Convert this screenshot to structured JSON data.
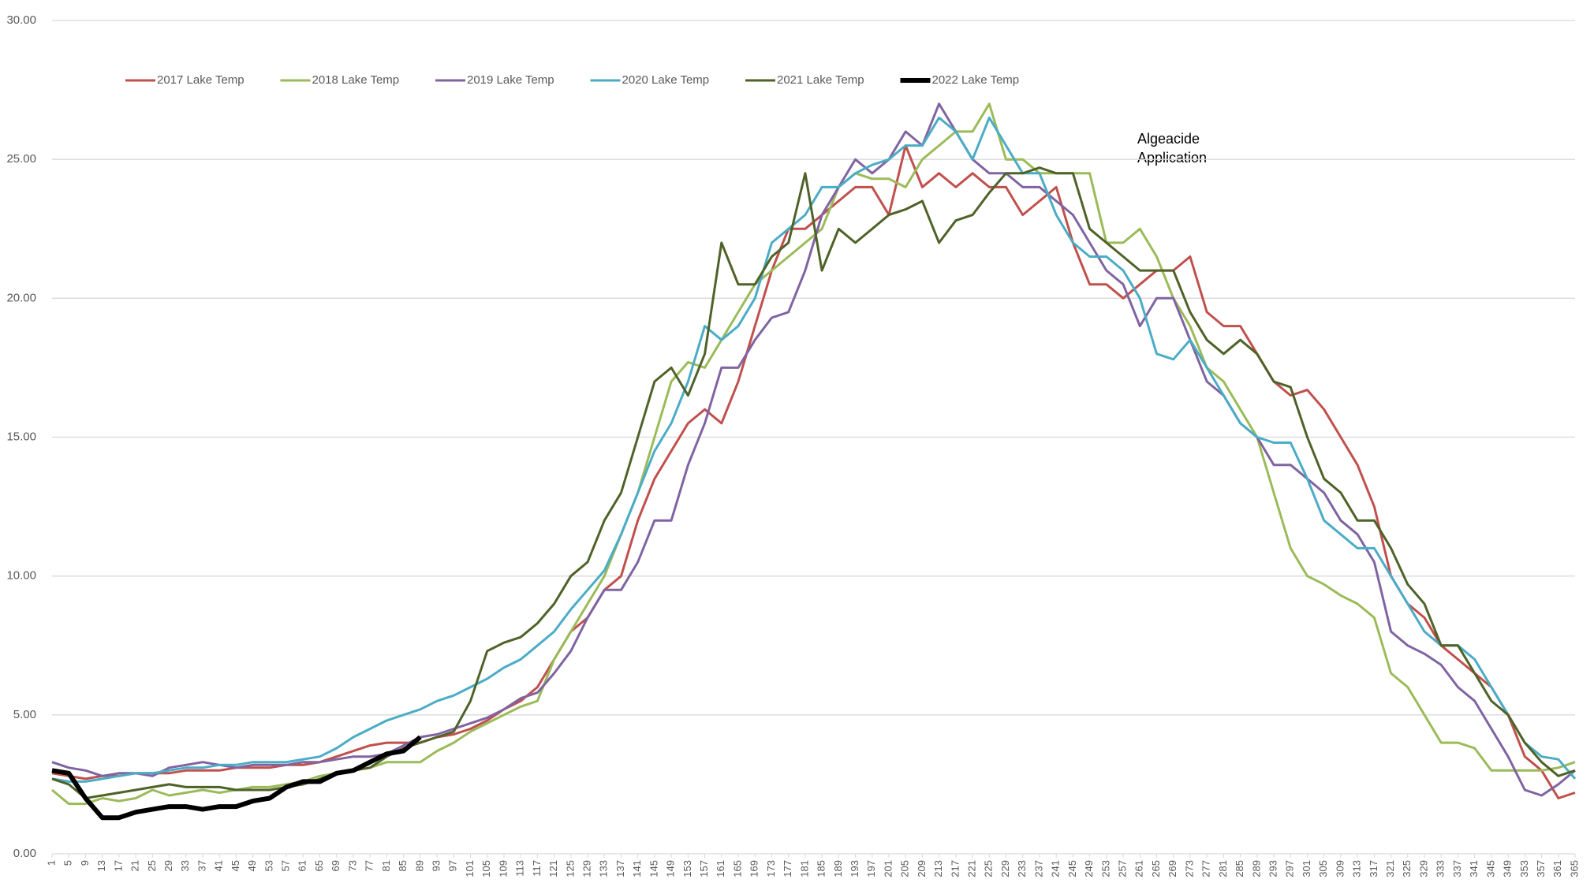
{
  "chart_data": {
    "type": "line",
    "annotation": "Algeacide Application",
    "xlim": [
      1,
      365
    ],
    "x": [
      1,
      5,
      9,
      13,
      17,
      21,
      25,
      29,
      33,
      37,
      41,
      45,
      49,
      53,
      57,
      61,
      65,
      69,
      73,
      77,
      81,
      85,
      89,
      93,
      97,
      101,
      105,
      109,
      113,
      117,
      121,
      125,
      129,
      133,
      137,
      141,
      145,
      149,
      153,
      157,
      161,
      165,
      169,
      173,
      177,
      181,
      185,
      189,
      193,
      197,
      201,
      205,
      209,
      213,
      217,
      221,
      225,
      229,
      233,
      237,
      241,
      245,
      249,
      253,
      257,
      261,
      265,
      269,
      273,
      277,
      281,
      285,
      289,
      293,
      297,
      301,
      305,
      309,
      313,
      317,
      321,
      325,
      329,
      333,
      337,
      341,
      345,
      349,
      353,
      357,
      361,
      365
    ],
    "xticks": [
      1,
      5,
      9,
      13,
      17,
      21,
      25,
      29,
      33,
      37,
      41,
      45,
      49,
      53,
      57,
      61,
      65,
      69,
      73,
      77,
      81,
      85,
      89,
      93,
      97,
      101,
      105,
      109,
      113,
      117,
      121,
      125,
      129,
      133,
      137,
      141,
      145,
      149,
      153,
      157,
      161,
      165,
      169,
      173,
      177,
      181,
      185,
      189,
      193,
      197,
      201,
      205,
      209,
      213,
      217,
      221,
      225,
      229,
      233,
      237,
      241,
      245,
      249,
      253,
      257,
      261,
      265,
      269,
      273,
      277,
      281,
      285,
      289,
      293,
      297,
      301,
      305,
      309,
      313,
      317,
      321,
      325,
      329,
      333,
      337,
      341,
      345,
      349,
      353,
      357,
      361,
      365
    ],
    "ylim": [
      0,
      30
    ],
    "yticks": [
      {
        "value": 0,
        "label": "0.00"
      },
      {
        "value": 5,
        "label": "5.00"
      },
      {
        "value": 10,
        "label": "10.00"
      },
      {
        "value": 15,
        "label": "15.00"
      },
      {
        "value": 20,
        "label": "20.00"
      },
      {
        "value": 25,
        "label": "25.00"
      },
      {
        "value": 30,
        "label": "30.00"
      }
    ],
    "grid": true,
    "legend": "top",
    "series": [
      {
        "name": "2017 Lake Temp",
        "color": "#c0504d",
        "width": 3,
        "values": [
          2.9,
          2.8,
          2.7,
          2.8,
          2.8,
          2.9,
          2.9,
          2.9,
          3.0,
          3.0,
          3.0,
          3.1,
          3.1,
          3.1,
          3.2,
          3.2,
          3.3,
          3.5,
          3.7,
          3.9,
          4.0,
          4.0,
          4.0,
          4.2,
          4.3,
          4.5,
          4.8,
          5.2,
          5.5,
          6.0,
          7.0,
          8.0,
          8.5,
          9.5,
          10.0,
          12.0,
          13.5,
          14.5,
          15.5,
          16.0,
          15.5,
          17.0,
          19.0,
          21.0,
          22.5,
          22.5,
          23.0,
          23.5,
          24.0,
          24.0,
          23.0,
          25.5,
          24.0,
          24.5,
          24.0,
          24.5,
          24.0,
          24.0,
          23.0,
          23.5,
          24.0,
          22.0,
          20.5,
          20.5,
          20.0,
          20.5,
          21.0,
          21.0,
          21.5,
          19.5,
          19.0,
          19.0,
          18.0,
          17.0,
          16.5,
          16.7,
          16.0,
          15.0,
          14.0,
          12.5,
          10.0,
          9.0,
          8.5,
          7.5,
          7.0,
          6.5,
          6.0,
          5.0,
          3.5,
          3.0,
          2.0,
          2.2
        ]
      },
      {
        "name": "2018 Lake Temp",
        "color": "#9bbb59",
        "width": 3,
        "values": [
          2.3,
          1.8,
          1.8,
          2.0,
          1.9,
          2.0,
          2.3,
          2.1,
          2.2,
          2.3,
          2.2,
          2.3,
          2.4,
          2.4,
          2.5,
          2.6,
          2.8,
          2.9,
          3.0,
          3.1,
          3.3,
          3.3,
          3.3,
          3.7,
          4.0,
          4.4,
          4.7,
          5.0,
          5.3,
          5.5,
          7.0,
          8.0,
          9.0,
          10.0,
          11.5,
          13.0,
          15.0,
          17.0,
          17.7,
          17.5,
          18.5,
          19.5,
          20.5,
          21.0,
          21.5,
          22.0,
          22.5,
          24.0,
          24.5,
          24.3,
          24.3,
          24.0,
          25.0,
          25.5,
          26.0,
          26.0,
          27.0,
          25.0,
          25.0,
          24.5,
          24.5,
          24.5,
          24.5,
          22.0,
          22.0,
          22.5,
          21.5,
          20.0,
          19.0,
          17.5,
          17.0,
          16.0,
          15.0,
          13.0,
          11.0,
          10.0,
          9.7,
          9.3,
          9.0,
          8.5,
          6.5,
          6.0,
          5.0,
          4.0,
          4.0,
          3.8,
          3.0,
          3.0,
          3.0,
          3.0,
          3.1,
          3.3
        ]
      },
      {
        "name": "2019 Lake Temp",
        "color": "#8064a2",
        "width": 3,
        "values": [
          3.3,
          3.1,
          3.0,
          2.8,
          2.9,
          2.9,
          2.8,
          3.1,
          3.2,
          3.3,
          3.2,
          3.1,
          3.2,
          3.2,
          3.2,
          3.3,
          3.3,
          3.4,
          3.5,
          3.5,
          3.6,
          3.9,
          4.2,
          4.3,
          4.5,
          4.7,
          4.9,
          5.2,
          5.6,
          5.8,
          6.5,
          7.3,
          8.5,
          9.5,
          9.5,
          10.5,
          12.0,
          12.0,
          14.0,
          15.5,
          17.5,
          17.5,
          18.5,
          19.3,
          19.5,
          21.0,
          23.0,
          24.0,
          25.0,
          24.5,
          25.0,
          26.0,
          25.5,
          27.0,
          26.0,
          25.0,
          24.5,
          24.5,
          24.0,
          24.0,
          23.5,
          23.0,
          22.0,
          21.0,
          20.5,
          19.0,
          20.0,
          20.0,
          18.5,
          17.0,
          16.5,
          15.5,
          15.0,
          14.0,
          14.0,
          13.5,
          13.0,
          12.0,
          11.5,
          10.5,
          8.0,
          7.5,
          7.2,
          6.8,
          6.0,
          5.5,
          4.5,
          3.5,
          2.3,
          2.1,
          2.5,
          3.0
        ]
      },
      {
        "name": "2020 Lake Temp",
        "color": "#4bacc6",
        "width": 3,
        "values": [
          2.7,
          2.6,
          2.6,
          2.7,
          2.8,
          2.9,
          2.9,
          3.0,
          3.1,
          3.1,
          3.2,
          3.2,
          3.3,
          3.3,
          3.3,
          3.4,
          3.5,
          3.8,
          4.2,
          4.5,
          4.8,
          5.0,
          5.2,
          5.5,
          5.7,
          6.0,
          6.3,
          6.7,
          7.0,
          7.5,
          8.0,
          8.8,
          9.5,
          10.2,
          11.5,
          13.0,
          14.5,
          15.5,
          17.0,
          19.0,
          18.5,
          19.0,
          20.0,
          22.0,
          22.5,
          23.0,
          24.0,
          24.0,
          24.5,
          24.8,
          25.0,
          25.5,
          25.5,
          26.5,
          26.0,
          25.0,
          26.5,
          25.5,
          24.5,
          24.5,
          23.0,
          22.0,
          21.5,
          21.5,
          21.0,
          20.0,
          18.0,
          17.8,
          18.5,
          17.5,
          16.5,
          15.5,
          15.0,
          14.8,
          14.8,
          13.5,
          12.0,
          11.5,
          11.0,
          11.0,
          10.0,
          9.0,
          8.0,
          7.5,
          7.5,
          7.0,
          6.0,
          5.0,
          4.0,
          3.5,
          3.4,
          2.7
        ]
      },
      {
        "name": "2021 Lake Temp",
        "color": "#4f6228",
        "width": 3,
        "values": [
          2.7,
          2.5,
          2.0,
          2.1,
          2.2,
          2.3,
          2.4,
          2.5,
          2.4,
          2.4,
          2.4,
          2.3,
          2.3,
          2.3,
          2.4,
          2.5,
          2.7,
          2.9,
          3.0,
          3.1,
          3.5,
          3.8,
          4.0,
          4.2,
          4.4,
          5.5,
          7.3,
          7.6,
          7.8,
          8.3,
          9.0,
          10.0,
          10.5,
          12.0,
          13.0,
          15.0,
          17.0,
          17.5,
          16.5,
          18.0,
          22.0,
          20.5,
          20.5,
          21.5,
          22.0,
          24.5,
          21.0,
          22.5,
          22.0,
          22.5,
          23.0,
          23.2,
          23.5,
          22.0,
          22.8,
          23.0,
          23.8,
          24.5,
          24.5,
          24.7,
          24.5,
          24.5,
          22.5,
          22.0,
          21.5,
          21.0,
          21.0,
          21.0,
          19.5,
          18.5,
          18.0,
          18.5,
          18.0,
          17.0,
          16.8,
          15.0,
          13.5,
          13.0,
          12.0,
          12.0,
          11.0,
          9.7,
          9.0,
          7.5,
          7.5,
          6.5,
          5.5,
          5.0,
          4.0,
          3.3,
          2.8,
          3.0
        ]
      },
      {
        "name": "2022 Lake Temp",
        "color": "#000000",
        "width": 6,
        "values": [
          3.0,
          2.9,
          2.0,
          1.3,
          1.3,
          1.5,
          1.6,
          1.7,
          1.7,
          1.6,
          1.7,
          1.7,
          1.9,
          2.0,
          2.4,
          2.6,
          2.6,
          2.9,
          3.0,
          3.3,
          3.6,
          3.7,
          4.2,
          null,
          null,
          null,
          null,
          null,
          null,
          null,
          null,
          null,
          null,
          null,
          null,
          null,
          null,
          null,
          null,
          null,
          null,
          null,
          null,
          null,
          null,
          null,
          null,
          null,
          null,
          null,
          null,
          null,
          null,
          null,
          null,
          null,
          null,
          null,
          null,
          null,
          null,
          null,
          null,
          null,
          null,
          null,
          null,
          null,
          null,
          null,
          null,
          null,
          null,
          null,
          null,
          null,
          null,
          null,
          null,
          null,
          null,
          null,
          null,
          null,
          null,
          null,
          null,
          null,
          null,
          null,
          null,
          null
        ]
      }
    ]
  }
}
